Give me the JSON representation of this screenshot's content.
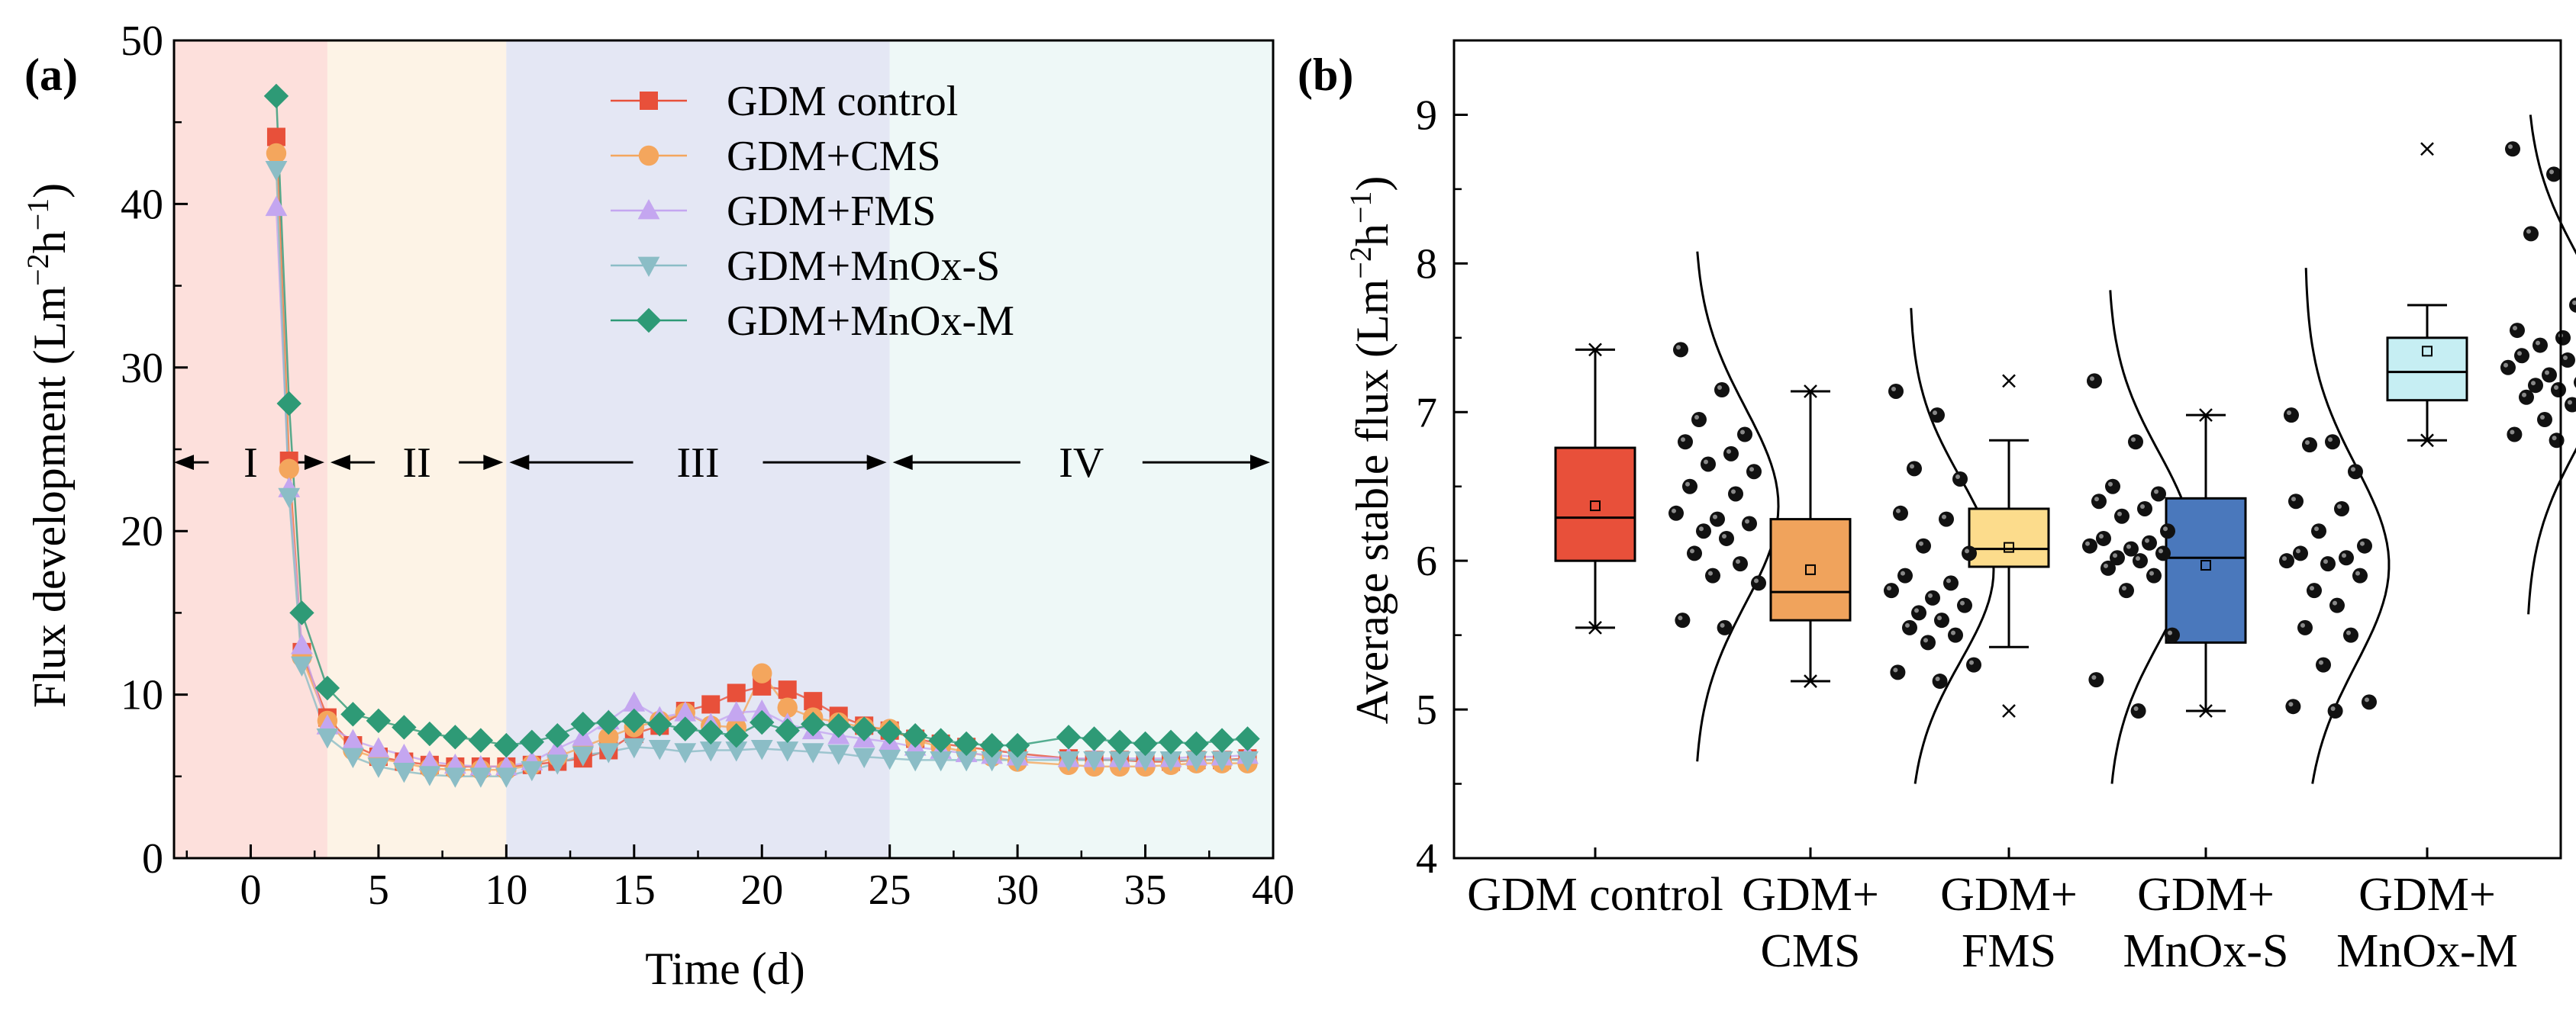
{
  "figure": {
    "panel_a_label": "(a)",
    "panel_b_label": "(b)"
  },
  "chart_data": [
    {
      "type": "line",
      "panel": "(a)",
      "title": "",
      "xlabel": "Time (d)",
      "ylabel": "Flux development (Lm⁻²h⁻¹)",
      "ylabel_main": "Flux development (Lm",
      "ylabel_sup1": "−2",
      "ylabel_mid": "h",
      "ylabel_sup2": "−1",
      "ylabel_end": ")",
      "xlim": [
        -3,
        40
      ],
      "ylim": [
        0,
        50
      ],
      "xticks": [
        0,
        5,
        10,
        15,
        20,
        25,
        30,
        35,
        40
      ],
      "xtick_labels": [
        "0",
        "5",
        "10",
        "15",
        "20",
        "25",
        "30",
        "35",
        "40"
      ],
      "yticks": [
        0,
        10,
        20,
        30,
        40,
        50
      ],
      "ytick_labels": [
        "0",
        "10",
        "20",
        "30",
        "40",
        "50"
      ],
      "legend_position": "top-center",
      "phases": [
        {
          "label": "I",
          "start": -3,
          "end": 3,
          "color": "#fde0dc"
        },
        {
          "label": "II",
          "start": 3,
          "end": 10,
          "color": "#fdf3e6"
        },
        {
          "label": "III",
          "start": 10,
          "end": 25,
          "color": "#e4e7f4"
        },
        {
          "label": "IV",
          "start": 25,
          "end": 40,
          "color": "#eef8f7"
        }
      ],
      "phase_arrow_y": 24.2,
      "series": [
        {
          "name": "GDM control",
          "color": "#e8503a",
          "marker": "square",
          "x": [
            1,
            1.5,
            2,
            3,
            4,
            5,
            6,
            7,
            8,
            9,
            10,
            11,
            12,
            13,
            14,
            15,
            16,
            17,
            18,
            19,
            20,
            21,
            22,
            23,
            24,
            25,
            26,
            27,
            28,
            29,
            30,
            32,
            33,
            34,
            35,
            36,
            37,
            38,
            39
          ],
          "y": [
            44.1,
            24.3,
            12.6,
            8.6,
            6.9,
            6.2,
            5.9,
            5.7,
            5.6,
            5.6,
            5.6,
            5.7,
            5.9,
            6.1,
            6.6,
            7.6,
            8.1,
            9.0,
            9.4,
            10.1,
            10.5,
            10.3,
            9.6,
            8.7,
            8.1,
            7.8,
            7.3,
            7.0,
            6.8,
            6.6,
            6.4,
            6.1,
            6.0,
            6.0,
            5.9,
            5.9,
            6.0,
            6.0,
            6.1
          ]
        },
        {
          "name": "GDM+CMS",
          "color": "#f4a65d",
          "marker": "circle",
          "x": [
            1,
            1.5,
            2,
            3,
            4,
            5,
            6,
            7,
            8,
            9,
            10,
            11,
            12,
            13,
            14,
            15,
            16,
            17,
            18,
            19,
            20,
            21,
            22,
            23,
            24,
            25,
            26,
            27,
            28,
            29,
            30,
            32,
            33,
            34,
            35,
            36,
            37,
            38,
            39
          ],
          "y": [
            43.1,
            23.8,
            12.3,
            8.4,
            6.6,
            6.1,
            5.8,
            5.5,
            5.4,
            5.4,
            5.4,
            5.7,
            6.2,
            6.8,
            7.4,
            8.0,
            8.4,
            8.9,
            8.1,
            8.0,
            11.3,
            9.2,
            8.6,
            8.3,
            8.0,
            7.9,
            7.2,
            6.8,
            6.5,
            6.2,
            5.9,
            5.7,
            5.6,
            5.6,
            5.6,
            5.7,
            5.8,
            5.8,
            5.8
          ]
        },
        {
          "name": "GDM+FMS",
          "color": "#c4a6f0",
          "marker": "triangle-up",
          "x": [
            1,
            1.5,
            2,
            3,
            4,
            5,
            6,
            7,
            8,
            9,
            10,
            11,
            12,
            13,
            14,
            15,
            16,
            17,
            18,
            19,
            20,
            21,
            22,
            23,
            24,
            25,
            26,
            27,
            28,
            29,
            30,
            32,
            33,
            34,
            35,
            36,
            37,
            38,
            39
          ],
          "y": [
            39.8,
            22.6,
            13.0,
            8.1,
            7.2,
            6.7,
            6.3,
            5.9,
            5.7,
            5.6,
            5.6,
            5.9,
            6.7,
            7.4,
            8.4,
            9.5,
            8.6,
            8.9,
            8.2,
            8.9,
            9.0,
            8.2,
            7.8,
            7.5,
            7.3,
            7.1,
            6.8,
            6.6,
            6.4,
            6.3,
            6.2,
            6.1,
            6.1,
            6.1,
            6.1,
            6.1,
            6.2,
            6.2,
            6.3
          ]
        },
        {
          "name": "GDM+MnOx-S",
          "color": "#8bbdc6",
          "marker": "triangle-down",
          "x": [
            1,
            1.5,
            2,
            3,
            4,
            5,
            6,
            7,
            8,
            9,
            10,
            11,
            12,
            13,
            14,
            15,
            16,
            17,
            18,
            19,
            20,
            21,
            22,
            23,
            24,
            25,
            26,
            27,
            28,
            29,
            30,
            32,
            33,
            34,
            35,
            36,
            37,
            38,
            39
          ],
          "y": [
            42.1,
            22.1,
            11.8,
            7.4,
            6.2,
            5.6,
            5.3,
            5.1,
            5.0,
            5.0,
            5.0,
            5.4,
            5.8,
            6.3,
            6.5,
            6.8,
            6.7,
            6.5,
            6.6,
            6.6,
            6.7,
            6.6,
            6.5,
            6.4,
            6.2,
            6.1,
            6.0,
            6.0,
            6.0,
            6.0,
            6.0,
            6.0,
            6.0,
            6.0,
            6.0,
            6.0,
            6.0,
            6.0,
            6.0
          ]
        },
        {
          "name": "GDM+MnOx-M",
          "color": "#2e9a76",
          "marker": "diamond",
          "x": [
            1,
            1.5,
            2,
            3,
            4,
            5,
            6,
            7,
            8,
            9,
            10,
            11,
            12,
            13,
            14,
            15,
            16,
            17,
            18,
            19,
            20,
            21,
            22,
            23,
            24,
            25,
            26,
            27,
            28,
            29,
            30,
            32,
            33,
            34,
            35,
            36,
            37,
            38,
            39
          ],
          "y": [
            46.6,
            27.8,
            15.0,
            10.4,
            8.8,
            8.4,
            8.0,
            7.6,
            7.4,
            7.2,
            6.9,
            7.1,
            7.5,
            8.2,
            8.3,
            8.4,
            8.2,
            7.9,
            7.7,
            7.5,
            8.3,
            7.8,
            8.2,
            8.1,
            7.9,
            7.7,
            7.5,
            7.2,
            7.0,
            6.9,
            6.9,
            7.4,
            7.3,
            7.1,
            7.0,
            7.1,
            7.0,
            7.2,
            7.3
          ]
        }
      ]
    },
    {
      "type": "box",
      "panel": "(b)",
      "title": "",
      "xlabel": "",
      "ylabel": "Average stable flux (Lm⁻²h⁻¹)",
      "ylabel_main": "Average stable flux (Lm",
      "ylabel_sup1": "−2",
      "ylabel_mid": "h",
      "ylabel_sup2": "−1",
      "ylabel_end": ")",
      "ylim": [
        4,
        9.5
      ],
      "yticks": [
        4,
        5,
        6,
        7,
        8,
        9
      ],
      "ytick_labels": [
        "4",
        "5",
        "6",
        "7",
        "8",
        "9"
      ],
      "categories": [
        {
          "lines": [
            "GDM control"
          ]
        },
        {
          "lines": [
            "GDM+",
            "CMS"
          ]
        },
        {
          "lines": [
            "GDM+",
            "FMS"
          ]
        },
        {
          "lines": [
            "GDM+",
            "MnOx-S"
          ]
        },
        {
          "lines": [
            "GDM+",
            "MnOx-M"
          ]
        }
      ],
      "series": [
        {
          "name": "GDM control",
          "color": "#e8503a",
          "whisker_low": 5.55,
          "q1": 6.0,
          "median": 6.29,
          "q3": 6.76,
          "whisker_high": 7.42,
          "mean": 6.37,
          "min_marker": 5.55,
          "max_marker": 7.42,
          "points": [
            7.42,
            7.15,
            6.95,
            6.85,
            6.8,
            6.72,
            6.65,
            6.6,
            6.5,
            6.45,
            6.32,
            6.28,
            6.25,
            6.2,
            6.15,
            6.05,
            5.98,
            5.9,
            5.85,
            5.6,
            5.55
          ],
          "dist_y": [
            4.65,
            8.08
          ],
          "dist_peak": 6.37
        },
        {
          "name": "GDM+CMS",
          "color": "#f0a35c",
          "whisker_low": 5.19,
          "q1": 5.6,
          "median": 5.79,
          "q3": 6.28,
          "whisker_high": 7.14,
          "mean": 5.94,
          "min_marker": 5.19,
          "max_marker": 7.14,
          "points": [
            7.14,
            6.98,
            6.62,
            6.55,
            6.32,
            6.28,
            6.1,
            6.05,
            5.9,
            5.85,
            5.8,
            5.75,
            5.7,
            5.65,
            5.6,
            5.55,
            5.5,
            5.45,
            5.3,
            5.25,
            5.19
          ],
          "dist_y": [
            4.5,
            7.7
          ],
          "dist_peak": 5.94
        },
        {
          "name": "GDM+FMS",
          "color": "#fcdc8c",
          "whisker_low": 5.42,
          "q1": 5.96,
          "median": 6.08,
          "q3": 6.35,
          "whisker_high": 6.81,
          "mean": 6.09,
          "min_marker": 4.99,
          "max_marker": 7.21,
          "points": [
            7.21,
            6.8,
            6.5,
            6.45,
            6.4,
            6.35,
            6.3,
            6.2,
            6.15,
            6.12,
            6.1,
            6.08,
            6.05,
            6.02,
            6.0,
            5.95,
            5.9,
            5.8,
            5.5,
            5.2,
            4.99
          ],
          "dist_y": [
            4.5,
            7.82
          ],
          "dist_peak": 6.09
        },
        {
          "name": "GDM+MnOx-S",
          "color": "#4a78bc",
          "whisker_low": 4.99,
          "q1": 5.45,
          "median": 6.02,
          "q3": 6.42,
          "whisker_high": 6.98,
          "mean": 5.97,
          "min_marker": 4.99,
          "max_marker": 6.98,
          "points": [
            6.98,
            6.8,
            6.78,
            6.6,
            6.4,
            6.35,
            6.2,
            6.1,
            6.05,
            6.02,
            6.0,
            5.98,
            5.9,
            5.8,
            5.7,
            5.55,
            5.5,
            5.3,
            5.05,
            5.02,
            4.99
          ],
          "dist_y": [
            4.5,
            7.97
          ],
          "dist_peak": 5.97
        },
        {
          "name": "GDM+MnOx-M",
          "color": "#c6eef3",
          "whisker_low": 6.81,
          "q1": 7.08,
          "median": 7.27,
          "q3": 7.5,
          "whisker_high": 7.72,
          "mean": 7.41,
          "min_marker": 6.81,
          "max_marker": 8.77,
          "points": [
            8.77,
            8.6,
            8.2,
            7.72,
            7.55,
            7.5,
            7.45,
            7.4,
            7.38,
            7.35,
            7.3,
            7.25,
            7.2,
            7.18,
            7.15,
            7.1,
            7.05,
            6.95,
            6.9,
            6.85,
            6.81
          ],
          "dist_y": [
            5.64,
            9.0
          ],
          "dist_peak": 7.41
        }
      ]
    }
  ]
}
